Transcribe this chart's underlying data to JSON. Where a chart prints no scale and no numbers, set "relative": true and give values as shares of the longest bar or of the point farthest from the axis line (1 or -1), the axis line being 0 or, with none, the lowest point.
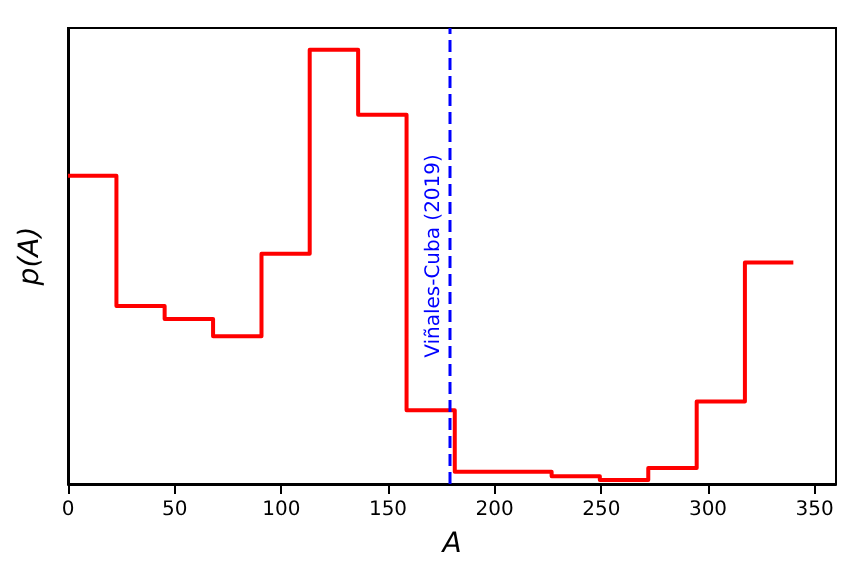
{
  "chart_data": {
    "type": "step",
    "relative": true,
    "xlabel": "A",
    "ylabel": "p(A)",
    "x": [
      0,
      22.7,
      45.3,
      68,
      90.7,
      113.3,
      136,
      158.7,
      181.3,
      204,
      226.7,
      249.3,
      272,
      294.7,
      317.3,
      340
    ],
    "values": [
      0.71,
      0.41,
      0.38,
      0.34,
      0.53,
      1,
      0.85,
      0.17,
      0.028,
      0.028,
      0.018,
      0.009,
      0.037,
      0.19,
      0.51,
      0.51
    ],
    "color": "#ff0000",
    "xlim": [
      0,
      360
    ],
    "xticks": [
      0,
      50,
      100,
      150,
      200,
      250,
      300,
      350
    ],
    "grid": false,
    "ref_lines": [
      {
        "axis": "x",
        "value": 179,
        "label": "Viñales-Cuba (2019)",
        "color": "#0000ff",
        "line_style": "dashed"
      }
    ]
  }
}
